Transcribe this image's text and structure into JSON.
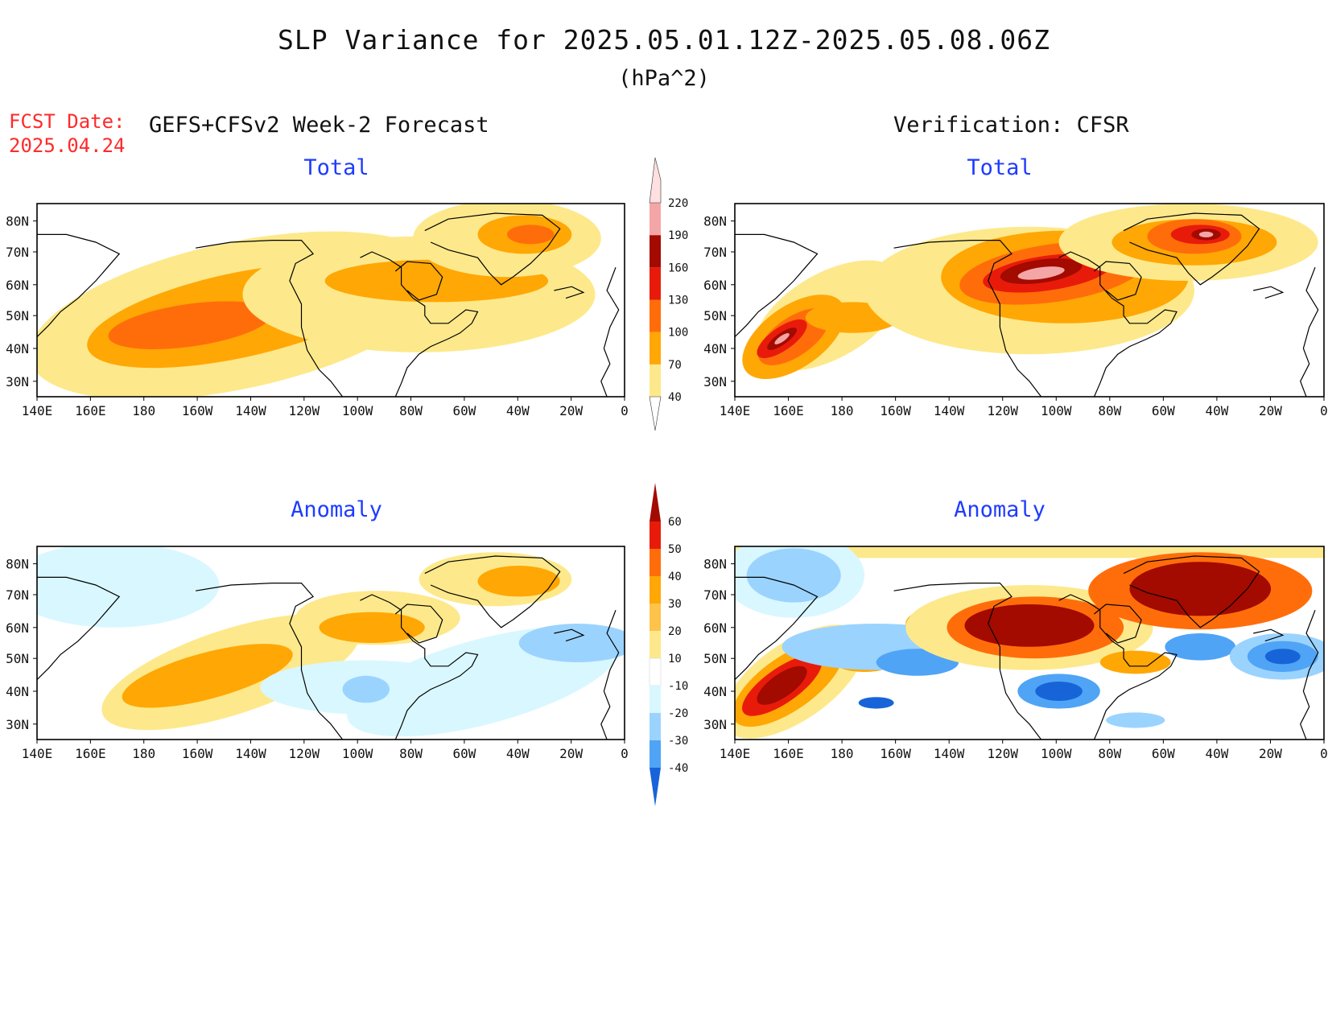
{
  "title": "SLP Variance for 2025.05.01.12Z-2025.05.08.06Z",
  "units": "(hPa^2)",
  "fcst_label": "FCST Date:",
  "fcst_date": "2025.04.24",
  "forecast_subtitle": "GEFS+CFSv2 Week-2 Forecast",
  "verification_subtitle": "Verification: CFSR",
  "panels": {
    "top_left": "Total",
    "top_right": "Total",
    "bottom_left": "Anomaly",
    "bottom_right": "Anomaly"
  },
  "lat_labels": [
    "80N",
    "70N",
    "60N",
    "50N",
    "40N",
    "30N"
  ],
  "lon_labels": [
    "140E",
    "160E",
    "180",
    "160W",
    "140W",
    "120W",
    "100W",
    "80W",
    "60W",
    "40W",
    "20W",
    "0"
  ],
  "total_colorbar": {
    "levels": [
      "40",
      "70",
      "100",
      "130",
      "160",
      "190",
      "220"
    ],
    "colors": [
      "#fde98b",
      "#ffa705",
      "#ff6d0a",
      "#e81b0b",
      "#a30a00",
      "#f4a6a6",
      "#ffe0e0"
    ]
  },
  "anomaly_colorbar": {
    "levels": [
      "60",
      "50",
      "40",
      "30",
      "20",
      "10",
      "-10",
      "-20",
      "-30",
      "-40"
    ],
    "colors_top_to_bottom": [
      "#a30a00",
      "#e81b0b",
      "#ff6d0a",
      "#ffa705",
      "#fdc34a",
      "#fde98b",
      "#ffffff",
      "#d9f7ff",
      "#9bd3ff",
      "#4fa4f5",
      "#1764d9"
    ]
  },
  "colors": {
    "light_yellow": "#fde98b",
    "orange": "#ffa705",
    "dark_orange": "#ff6d0a",
    "red": "#e81b0b",
    "dark_red": "#a30a00",
    "pink": "#f4a6a6",
    "light_pink": "#ffe0e0",
    "light_cyan": "#d9f7ff",
    "light_blue": "#9bd3ff",
    "blue": "#4fa4f5",
    "dark_blue": "#1764d9",
    "title_blue": "#1e3cff",
    "fcst_red": "#ff2a2a"
  }
}
